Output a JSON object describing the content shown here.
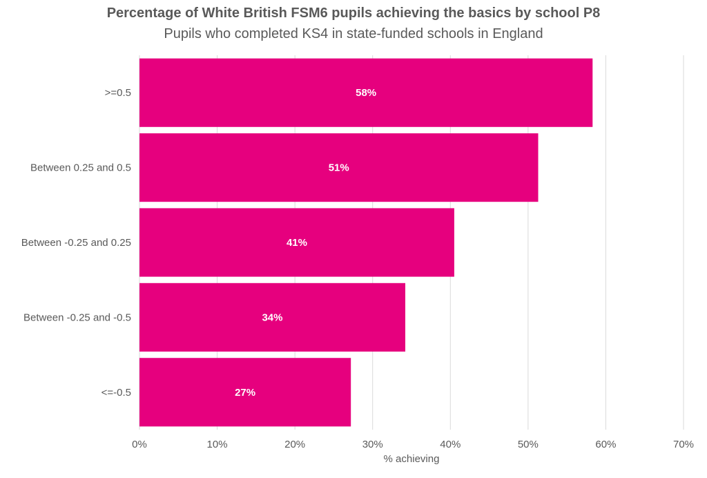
{
  "chart_data": {
    "type": "bar",
    "orientation": "horizontal",
    "title": "Percentage of White British FSM6 pupils achieving the basics by school P8",
    "subtitle": "Pupils who completed KS4 in state-funded schools in England",
    "xlabel": "% achieving",
    "ylabel": "",
    "categories": [
      ">=0.5",
      "Between 0.25 and 0.5",
      "Between -0.25 and 0.25",
      "Between -0.25 and -0.5",
      "<=-0.5"
    ],
    "values": [
      58.3,
      51.3,
      40.5,
      34.2,
      27.2
    ],
    "data_labels": [
      "58%",
      "51%",
      "41%",
      "34%",
      "27%"
    ],
    "xlim": [
      0,
      70
    ],
    "x_ticks": [
      0,
      10,
      20,
      30,
      40,
      50,
      60,
      70
    ],
    "x_tick_labels": [
      "0%",
      "10%",
      "20%",
      "30%",
      "40%",
      "50%",
      "60%",
      "70%"
    ],
    "grid": "vertical",
    "legend": "none",
    "bar_color": "#E6007E",
    "label_color": "#ffffff",
    "text_color": "#595959",
    "grid_color": "#d9d9d9"
  }
}
